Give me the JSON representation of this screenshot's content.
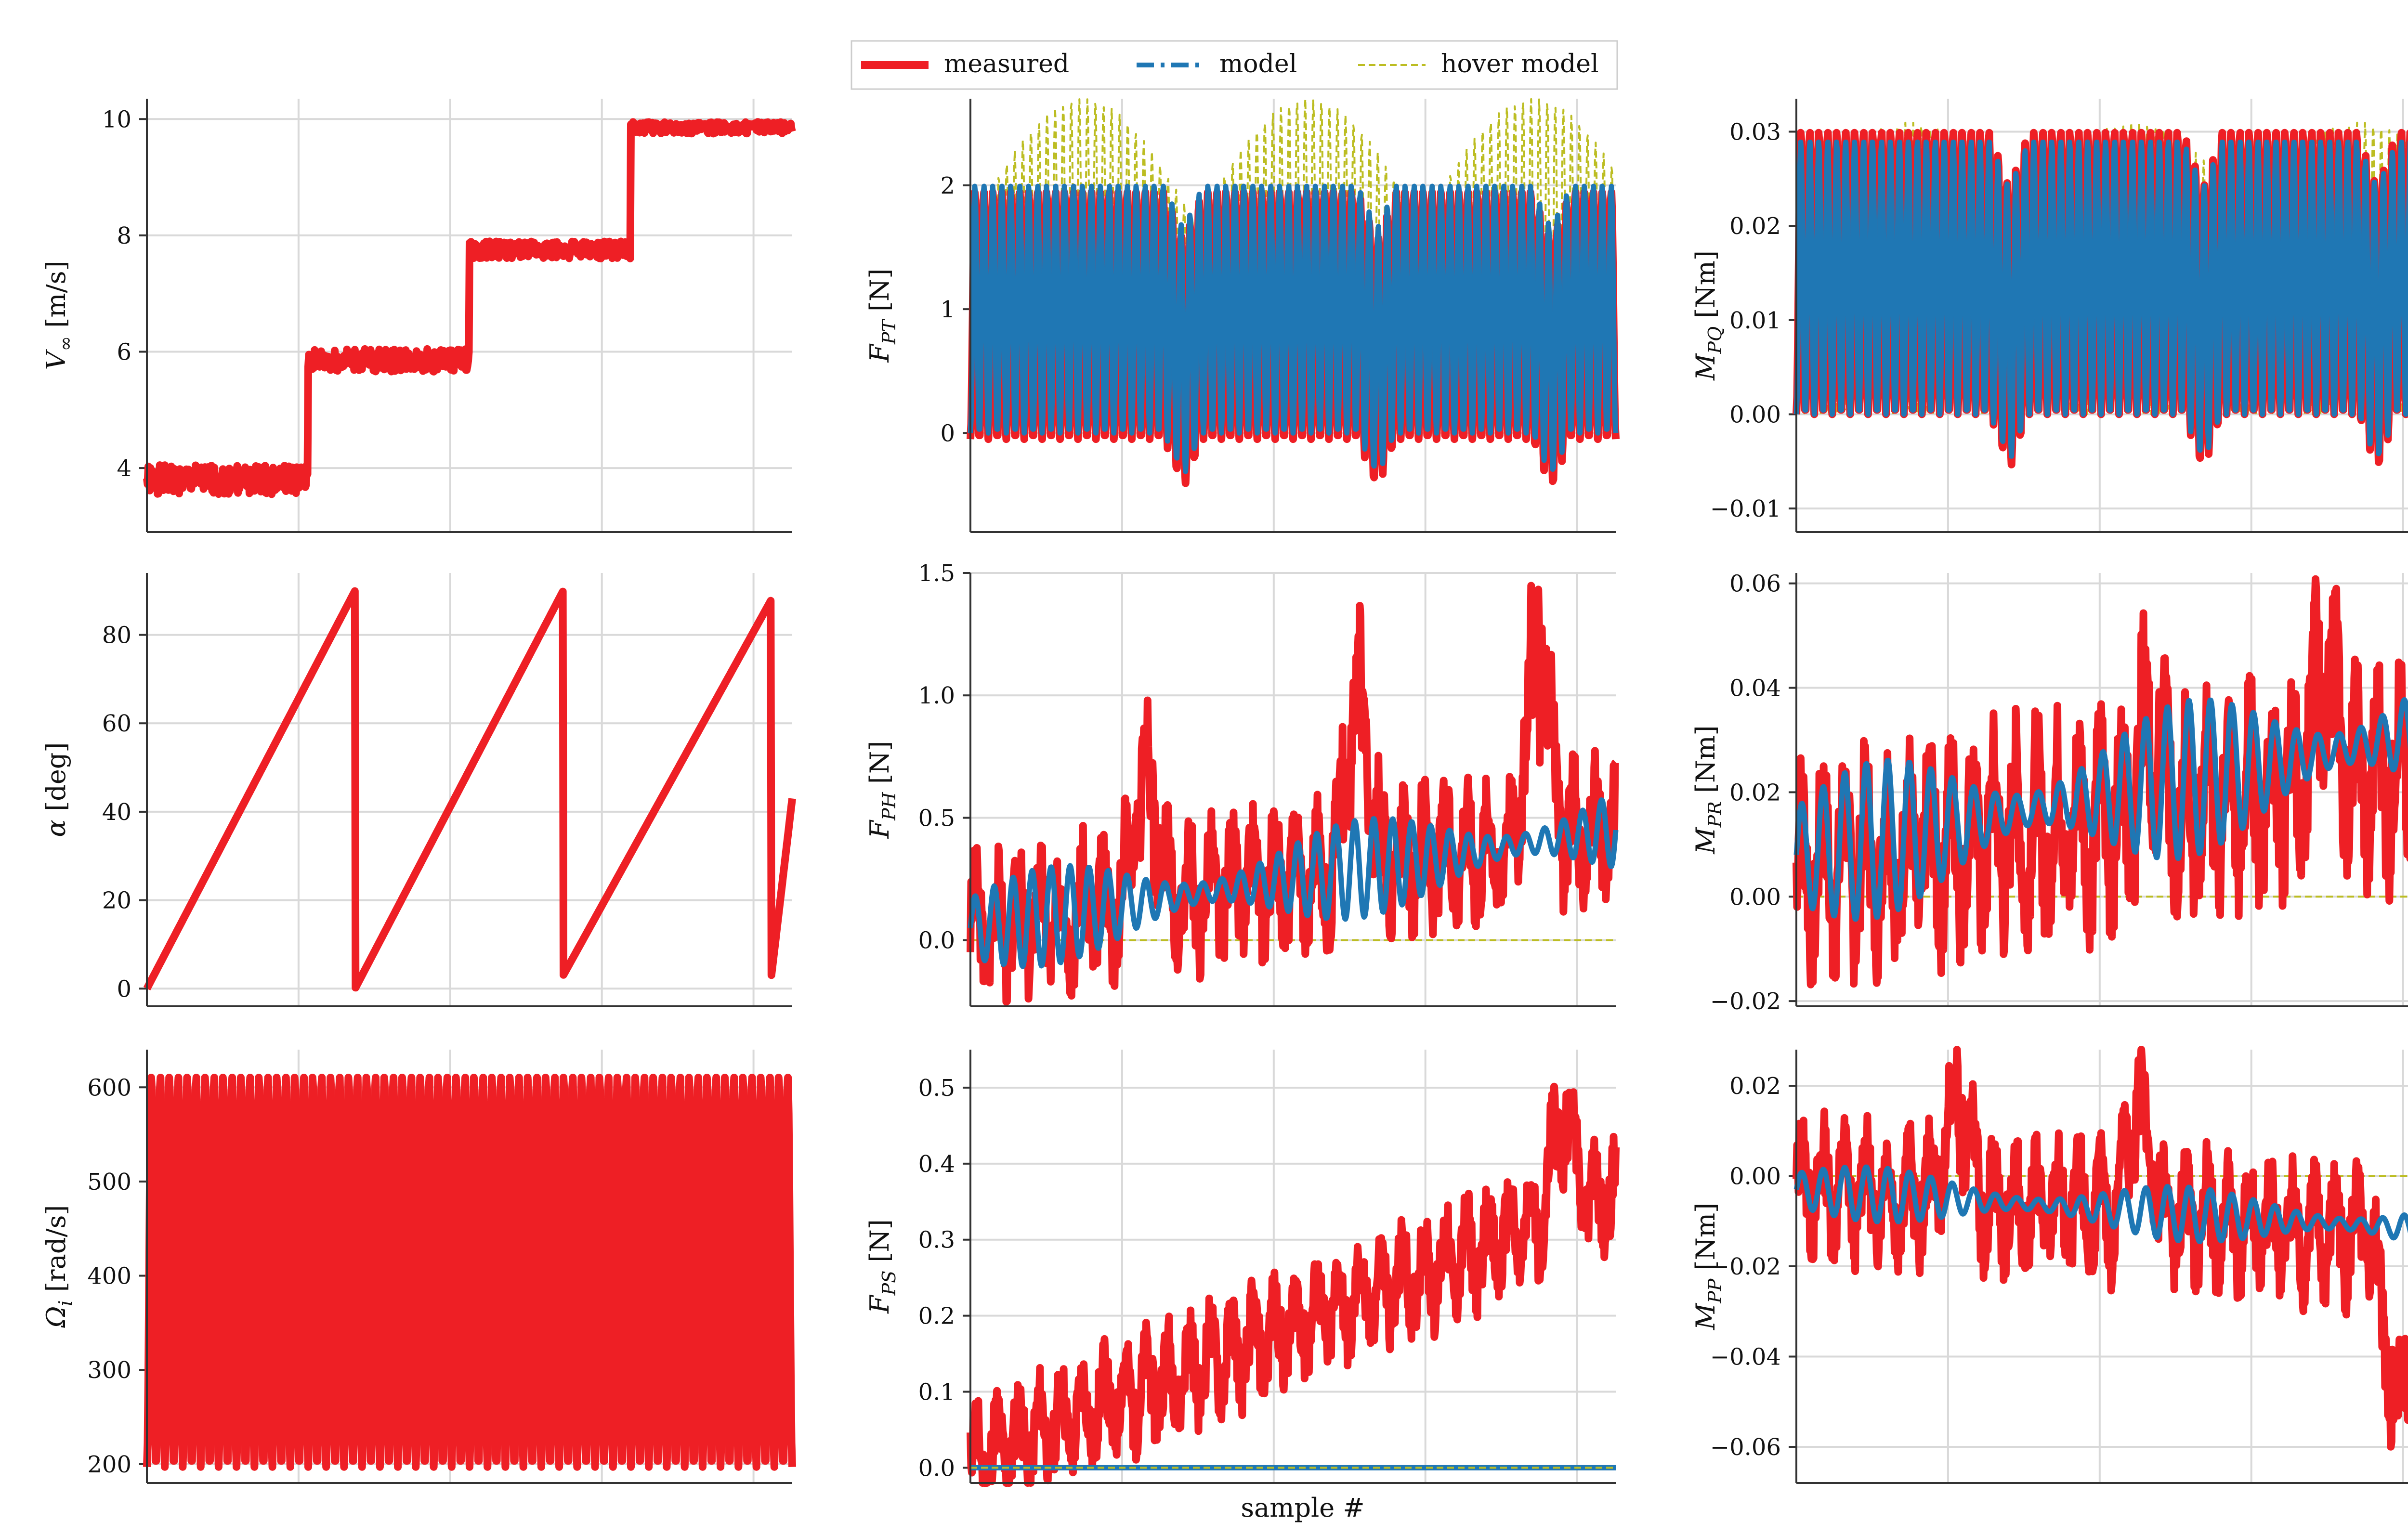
{
  "legend": {
    "placement": "top-center",
    "items": [
      {
        "label": "measured",
        "color": "#ee1f25",
        "style": "solid-thick"
      },
      {
        "label": "model",
        "color": "#1f77b4",
        "style": "dashdot"
      },
      {
        "label": "hover model",
        "color": "#bcbd22",
        "style": "dashed-thin"
      }
    ]
  },
  "xlabel": "sample #",
  "chart_data": [
    {
      "id": "v_inf",
      "type": "line",
      "ylabel_main": "V",
      "ylabel_sub": "∞",
      "ylabel_tail": " [m/s]",
      "ylim": [
        2.9,
        10.35
      ],
      "ticks": [
        4,
        6,
        8,
        10
      ],
      "tick_labels": [
        "4",
        "6",
        "8",
        "10"
      ],
      "series": [
        {
          "name": "measured",
          "gen": "vinf",
          "params": {
            "levels": [
              3.8,
              5.85,
              7.75,
              9.85
            ],
            "noise": [
              0.25,
              0.2,
              0.15,
              0.1
            ]
          }
        }
      ]
    },
    {
      "id": "f_pt",
      "type": "line",
      "ylabel_main": "F",
      "ylabel_sub": "PT",
      "ylabel_tail": " [N]",
      "ylim": [
        -0.8,
        2.7
      ],
      "ticks": [
        0,
        1,
        2
      ],
      "tick_labels": [
        "0",
        "1",
        "2"
      ],
      "series": [
        {
          "name": "hover model",
          "gen": "osc",
          "params": {
            "base": 0.2,
            "amp": 2.5,
            "cycles": 40,
            "minT": 0.6,
            "maxT": 1.0
          }
        },
        {
          "name": "measured",
          "gen": "osc",
          "params": {
            "base": -0.05,
            "amp": 2.0,
            "cycles": 36,
            "dip": [
              0.33,
              0.63,
              0.9
            ],
            "dipDepth": 0.4
          }
        },
        {
          "name": "model",
          "gen": "osc",
          "params": {
            "base": 0.0,
            "amp": 2.0,
            "cycles": 36,
            "dip": [
              0.33,
              0.63,
              0.9
            ],
            "dipDepth": 0.35
          }
        }
      ]
    },
    {
      "id": "m_pq",
      "type": "line",
      "ylabel_main": "M",
      "ylabel_sub": "PQ",
      "ylabel_tail": " [Nm]",
      "ylim": [
        -0.0125,
        0.0335
      ],
      "ticks": [
        -0.01,
        0.0,
        0.01,
        0.02,
        0.03
      ],
      "tick_labels": [
        "−0.01",
        "0.00",
        "0.01",
        "0.02",
        "0.03"
      ],
      "series": [
        {
          "name": "hover model",
          "gen": "osc",
          "params": {
            "base": 0.0,
            "amp": 0.031,
            "cycles": 40,
            "minT": 0.7,
            "maxT": 1.0
          }
        },
        {
          "name": "measured",
          "gen": "osc",
          "params": {
            "base": 0.0,
            "amp": 0.03,
            "cycles": 36,
            "dip": [
              0.33,
              0.63,
              0.9
            ],
            "dipDepth": 0.006
          }
        },
        {
          "name": "model",
          "gen": "osc",
          "params": {
            "base": 0.0,
            "amp": 0.029,
            "cycles": 36,
            "dip": [
              0.33,
              0.63,
              0.9
            ],
            "dipDepth": 0.005
          }
        }
      ]
    },
    {
      "id": "alpha",
      "type": "line",
      "ylabel_main": "α",
      "ylabel_sub": "",
      "ylabel_tail": " [deg]",
      "ylim": [
        -4,
        94
      ],
      "ticks": [
        0,
        20,
        40,
        60,
        80
      ],
      "tick_labels": [
        "0",
        "20",
        "40",
        "60",
        "80"
      ],
      "series": [
        {
          "name": "measured",
          "gen": "alpha",
          "params": {
            "peaks": [
              90,
              90,
              88,
              40
            ]
          }
        }
      ]
    },
    {
      "id": "f_ph",
      "type": "line",
      "ylabel_main": "F",
      "ylabel_sub": "PH",
      "ylabel_tail": " [N]",
      "ylim": [
        -0.27,
        1.5
      ],
      "ticks": [
        0.0,
        0.5,
        1.0,
        1.5
      ],
      "tick_labels": [
        "0.0",
        "0.5",
        "1.0",
        "1.5"
      ],
      "series": [
        {
          "name": "hover model",
          "gen": "flat",
          "params": {
            "value": 0.0
          }
        },
        {
          "name": "measured",
          "gen": "noisy",
          "params": {
            "trend": [
              0.05,
              0.45
            ],
            "amp": 0.35,
            "bursts": [
              [
                0.27,
                0.85
              ],
              [
                0.6,
                1.2
              ],
              [
                0.88,
                1.42
              ]
            ],
            "seed": 3
          }
        },
        {
          "name": "model",
          "gen": "wave",
          "params": {
            "trend": [
              0.05,
              0.45
            ],
            "amp": 0.2,
            "cycles": 34,
            "seed": 5
          }
        }
      ]
    },
    {
      "id": "m_pr",
      "type": "line",
      "ylabel_main": "M",
      "ylabel_sub": "PR",
      "ylabel_tail": " [Nm]",
      "ylim": [
        -0.021,
        0.062
      ],
      "ticks": [
        -0.02,
        0.0,
        0.02,
        0.04,
        0.06
      ],
      "tick_labels": [
        "−0.02",
        "0.00",
        "0.02",
        "0.04",
        "0.06"
      ],
      "series": [
        {
          "name": "hover model",
          "gen": "flat",
          "params": {
            "value": 0.0
          }
        },
        {
          "name": "measured",
          "gen": "noisy",
          "params": {
            "trend": [
              0.005,
              0.025
            ],
            "amp": 0.025,
            "bursts": [
              [
                0.55,
                0.038
              ],
              [
                0.82,
                0.052
              ]
            ],
            "seed": 7
          }
        },
        {
          "name": "model",
          "gen": "wave",
          "params": {
            "trend": [
              0.008,
              0.032
            ],
            "amp": 0.015,
            "cycles": 30,
            "seed": 9
          }
        }
      ]
    },
    {
      "id": "omega",
      "type": "line",
      "ylabel_main": "Ω",
      "ylabel_sub": "i",
      "ylabel_tail": " [rad/s]",
      "ylim": [
        180,
        640
      ],
      "ticks": [
        200,
        300,
        400,
        500,
        600
      ],
      "tick_labels": [
        "200",
        "300",
        "400",
        "500",
        "600"
      ],
      "series": [
        {
          "name": "measured",
          "gen": "osc",
          "params": {
            "base": 197,
            "amp": 415,
            "cycles": 36,
            "minT": 1.0,
            "maxT": 1.0
          }
        }
      ]
    },
    {
      "id": "f_ps",
      "type": "line",
      "ylabel_main": "F",
      "ylabel_sub": "PS",
      "ylabel_tail": " [N]",
      "ylim": [
        -0.02,
        0.55
      ],
      "ticks": [
        0.0,
        0.1,
        0.2,
        0.3,
        0.4,
        0.5
      ],
      "tick_labels": [
        "0.0",
        "0.1",
        "0.2",
        "0.3",
        "0.4",
        "0.5"
      ],
      "series": [
        {
          "name": "measured",
          "gen": "noisy",
          "params": {
            "trend": [
              0.01,
              0.36
            ],
            "amp": 0.09,
            "bursts": [
              [
                0.92,
                0.51
              ]
            ],
            "seed": 11
          }
        },
        {
          "name": "model",
          "gen": "flat",
          "params": {
            "value": 0.0
          }
        },
        {
          "name": "hover model",
          "gen": "flat",
          "params": {
            "value": 0.0
          }
        }
      ]
    },
    {
      "id": "m_pp",
      "type": "line",
      "ylabel_main": "M",
      "ylabel_sub": "PP",
      "ylabel_tail": " [Nm]",
      "ylim": [
        -0.068,
        0.028
      ],
      "ticks": [
        -0.06,
        -0.04,
        -0.02,
        0.0,
        0.02
      ],
      "tick_labels": [
        "−0.06",
        "−0.04",
        "−0.02",
        "0.00",
        "0.02"
      ],
      "series": [
        {
          "name": "hover model",
          "gen": "flat",
          "params": {
            "value": 0.0
          }
        },
        {
          "name": "measured",
          "gen": "noisy",
          "params": {
            "trend": [
              -0.002,
              -0.015
            ],
            "amp": 0.018,
            "bursts": [
              [
                0.25,
                0.024
              ],
              [
                0.53,
                0.023
              ],
              [
                0.93,
                -0.065
              ]
            ],
            "seed": 13
          }
        },
        {
          "name": "model",
          "gen": "wave",
          "params": {
            "trend": [
              -0.003,
              -0.012
            ],
            "amp": 0.006,
            "cycles": 30,
            "seed": 15
          }
        }
      ]
    }
  ]
}
